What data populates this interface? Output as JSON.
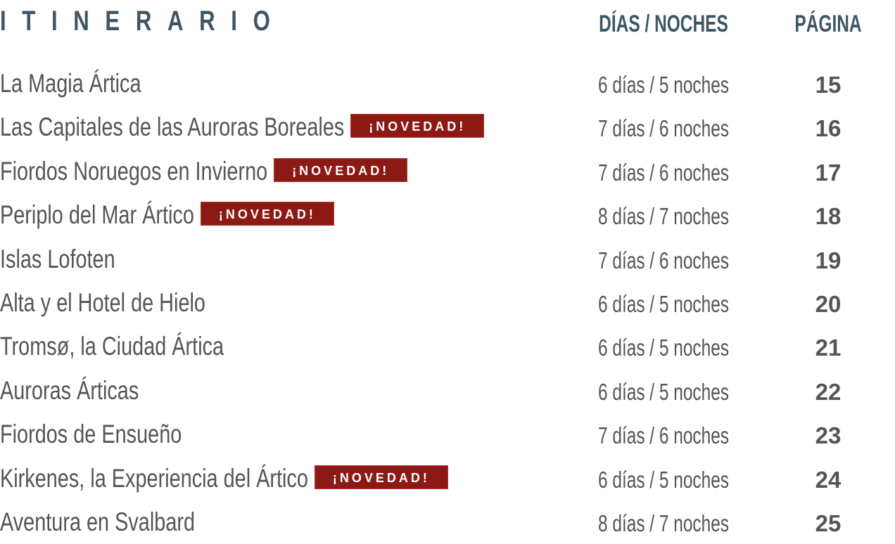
{
  "header": {
    "title": "ITINERARIO",
    "days_label": "DÍAS / NOCHES",
    "page_label": "PÁGINA"
  },
  "badge_label": "¡NOVEDAD!",
  "colors": {
    "title": "#3d5664",
    "text": "#555555",
    "badge": "#8b1a14"
  },
  "itineraries": [
    {
      "name": "La Magia Ártica",
      "new": false,
      "duration": "6 días / 5 noches",
      "page": "15"
    },
    {
      "name": "Las Capitales de las Auroras Boreales",
      "new": true,
      "duration": "7 días / 6 noches",
      "page": "16"
    },
    {
      "name": "Fiordos Noruegos en Invierno",
      "new": true,
      "duration": "7 días / 6 noches",
      "page": "17"
    },
    {
      "name": "Periplo del Mar Ártico",
      "new": true,
      "duration": "8 días / 7 noches",
      "page": "18"
    },
    {
      "name": "Islas Lofoten",
      "new": false,
      "duration": "7 días / 6 noches",
      "page": "19"
    },
    {
      "name": "Alta y el Hotel de Hielo",
      "new": false,
      "duration": "6 días / 5 noches",
      "page": "20"
    },
    {
      "name": "Tromsø, la Ciudad Ártica",
      "new": false,
      "duration": "6 días / 5 noches",
      "page": "21"
    },
    {
      "name": "Auroras Árticas",
      "new": false,
      "duration": "6 días / 5 noches",
      "page": "22"
    },
    {
      "name": "Fiordos de Ensueño",
      "new": false,
      "duration": "7 días / 6 noches",
      "page": "23"
    },
    {
      "name": "Kirkenes, la Experiencia del Ártico",
      "new": true,
      "duration": "6 días / 5 noches",
      "page": "24"
    },
    {
      "name": "Aventura en Svalbard",
      "new": false,
      "duration": "8 días / 7 noches",
      "page": "25"
    }
  ]
}
